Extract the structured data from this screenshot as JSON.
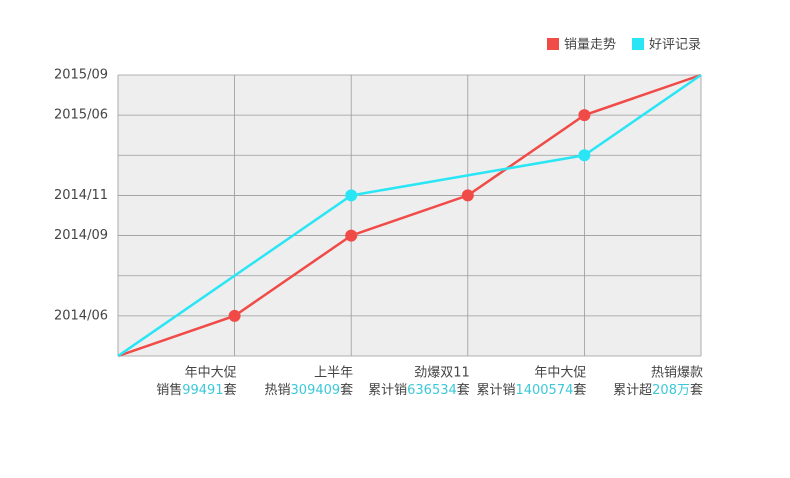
{
  "chart_data": {
    "type": "line",
    "series": [
      {
        "name": "销量走势",
        "color": "#f04b47",
        "x": [
          0,
          1,
          2,
          3,
          4,
          5
        ],
        "values": [
          0,
          1,
          3,
          4,
          6,
          7
        ]
      },
      {
        "name": "好评记录",
        "color": "#2ae6f4",
        "x": [
          0,
          2,
          4,
          5
        ],
        "values": [
          0,
          4,
          5,
          7
        ]
      }
    ],
    "xlim": [
      0,
      5
    ],
    "ylim": [
      0,
      7
    ],
    "xticks": [
      0,
      1,
      2,
      3,
      4,
      5
    ],
    "yticks": [
      {
        "value": 0,
        "label": null
      },
      {
        "value": 1,
        "label": "2014/06"
      },
      {
        "value": 2,
        "label": null
      },
      {
        "value": 3,
        "label": "2014/09"
      },
      {
        "value": 4,
        "label": "2014/11"
      },
      {
        "value": 5,
        "label": null
      },
      {
        "value": 6,
        "label": "2015/06"
      },
      {
        "value": 7,
        "label": "2015/09"
      }
    ],
    "x_labels": [
      null,
      {
        "title": "年中大促",
        "prefix": "销售",
        "number": "99491",
        "suffix": "套"
      },
      {
        "title": "上半年",
        "prefix": "热销",
        "number": "309409",
        "suffix": "套"
      },
      {
        "title": "劲爆双11",
        "prefix": "累计销",
        "number": "636534",
        "suffix": "套"
      },
      {
        "title": "年中大促",
        "prefix": "累计销",
        "number": "1400574",
        "suffix": "套"
      },
      {
        "title": "热销爆款",
        "prefix": "累计超",
        "number": "208万",
        "suffix": "套"
      }
    ],
    "grid": true,
    "legend": "top-right",
    "highlight_color": "#3cc8d8"
  }
}
